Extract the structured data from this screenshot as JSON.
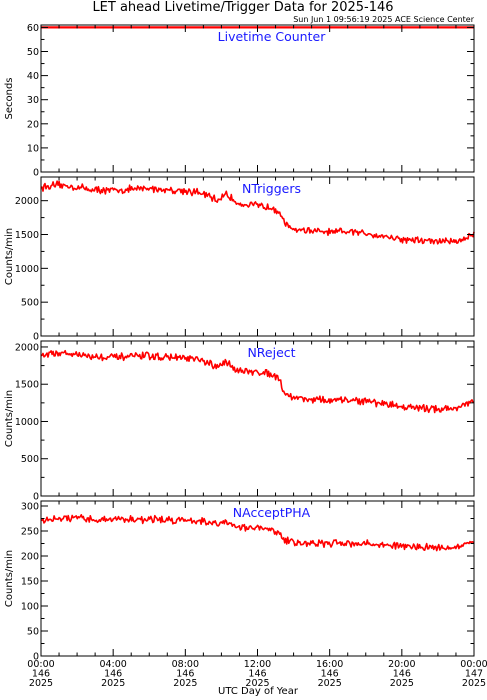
{
  "title": "LET ahead Livetime/Trigger Data for 2025-146",
  "subtitle": "Sun Jun  1 09:56:19 2025 ACE Science Center",
  "xlabel": "UTC Day of Year",
  "colors": {
    "series": "#ff0000",
    "panel_label": "#1a1aff",
    "axes": "#000000"
  },
  "x_ticks": [
    {
      "time": "00:00",
      "doy": "146",
      "year": "2025"
    },
    {
      "time": "04:00",
      "doy": "146",
      "year": "2025"
    },
    {
      "time": "08:00",
      "doy": "146",
      "year": "2025"
    },
    {
      "time": "12:00",
      "doy": "146",
      "year": "2025"
    },
    {
      "time": "16:00",
      "doy": "146",
      "year": "2025"
    },
    {
      "time": "20:00",
      "doy": "146",
      "year": "2025"
    },
    {
      "time": "00:00",
      "doy": "147",
      "year": "2025"
    }
  ],
  "chart_data": [
    {
      "type": "line",
      "label": "Livetime Counter",
      "ylabel": "Seconds",
      "xlim": [
        0,
        24
      ],
      "ylim": [
        0,
        61
      ],
      "yticks": [
        0,
        10,
        20,
        30,
        40,
        50,
        60
      ],
      "grid": false,
      "series": [
        {
          "x": [
            0,
            24
          ],
          "y": [
            60,
            60
          ]
        }
      ]
    },
    {
      "type": "line",
      "label": "NTriggers",
      "ylabel": "Counts/min",
      "xlim": [
        0,
        24
      ],
      "ylim": [
        0,
        2350
      ],
      "yticks": [
        0,
        500,
        1000,
        1500,
        2000
      ],
      "grid": false,
      "series": [
        {
          "x": [
            0,
            1,
            2,
            3,
            4,
            5,
            6,
            7,
            8,
            9,
            9.8,
            10.2,
            11,
            12,
            12.8,
            13.2,
            13.5,
            14,
            15,
            16,
            17,
            18,
            19,
            20,
            21,
            22,
            23,
            23.5,
            24
          ],
          "y": [
            2200,
            2230,
            2200,
            2160,
            2150,
            2170,
            2180,
            2160,
            2150,
            2100,
            2000,
            2100,
            1950,
            1930,
            1900,
            1850,
            1650,
            1580,
            1550,
            1530,
            1540,
            1520,
            1480,
            1430,
            1410,
            1400,
            1400,
            1450,
            1500
          ]
        }
      ]
    },
    {
      "type": "line",
      "label": "NReject",
      "ylabel": "Counts/min",
      "xlim": [
        0,
        24
      ],
      "ylim": [
        0,
        2080
      ],
      "yticks": [
        0,
        500,
        1000,
        1500,
        2000
      ],
      "grid": false,
      "series": [
        {
          "x": [
            0,
            1,
            2,
            3,
            4,
            5,
            6,
            7,
            8,
            9,
            9.8,
            10.2,
            11,
            12,
            12.8,
            13.2,
            13.5,
            14,
            15,
            16,
            17,
            18,
            19,
            20,
            21,
            22,
            23,
            23.5,
            24
          ],
          "y": [
            1900,
            1920,
            1900,
            1870,
            1860,
            1870,
            1880,
            1860,
            1850,
            1810,
            1720,
            1800,
            1680,
            1660,
            1640,
            1580,
            1380,
            1320,
            1300,
            1280,
            1290,
            1270,
            1240,
            1200,
            1180,
            1170,
            1180,
            1230,
            1260
          ]
        }
      ]
    },
    {
      "type": "line",
      "label": "NAcceptPHA",
      "ylabel": "Counts/min",
      "xlim": [
        0,
        24
      ],
      "ylim": [
        0,
        310
      ],
      "yticks": [
        0,
        50,
        100,
        150,
        200,
        250,
        300
      ],
      "grid": false,
      "series": [
        {
          "x": [
            0,
            1,
            2,
            3,
            4,
            5,
            6,
            7,
            8,
            9,
            9.8,
            10.2,
            11,
            12,
            12.8,
            13.2,
            13.5,
            14,
            15,
            16,
            17,
            18,
            19,
            20,
            21,
            22,
            23,
            23.5,
            24
          ],
          "y": [
            270,
            275,
            275,
            272,
            275,
            272,
            274,
            272,
            272,
            270,
            262,
            270,
            258,
            255,
            252,
            245,
            232,
            228,
            225,
            225,
            226,
            224,
            222,
            220,
            218,
            217,
            217,
            222,
            225
          ]
        }
      ]
    }
  ]
}
